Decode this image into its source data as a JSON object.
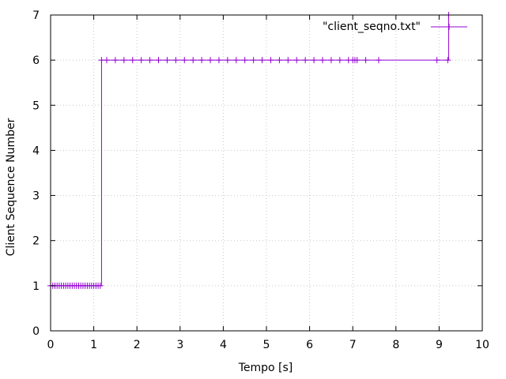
{
  "chart_data": {
    "type": "line",
    "title": "",
    "xlabel": "Tempo [s]",
    "ylabel": "Client Sequence Number",
    "xlim": [
      0,
      10
    ],
    "ylim": [
      0,
      7
    ],
    "x_ticks": [
      "0",
      "1",
      "2",
      "3",
      "4",
      "5",
      "6",
      "7",
      "8",
      "9",
      "10"
    ],
    "y_ticks": [
      "0",
      "1",
      "2",
      "3",
      "4",
      "5",
      "6",
      "7"
    ],
    "grid": true,
    "legend_position": "top-right",
    "series": [
      {
        "name": "\"client_seqno.txt\"",
        "color": "#9400d3",
        "style": "linespoints",
        "marker": "plus",
        "points": [
          {
            "x": 0.0,
            "y": 1
          },
          {
            "x": 0.05,
            "y": 1
          },
          {
            "x": 0.1,
            "y": 1
          },
          {
            "x": 0.15,
            "y": 1
          },
          {
            "x": 0.2,
            "y": 1
          },
          {
            "x": 0.25,
            "y": 1
          },
          {
            "x": 0.3,
            "y": 1
          },
          {
            "x": 0.35,
            "y": 1
          },
          {
            "x": 0.4,
            "y": 1
          },
          {
            "x": 0.45,
            "y": 1
          },
          {
            "x": 0.5,
            "y": 1
          },
          {
            "x": 0.55,
            "y": 1
          },
          {
            "x": 0.6,
            "y": 1
          },
          {
            "x": 0.65,
            "y": 1
          },
          {
            "x": 0.7,
            "y": 1
          },
          {
            "x": 0.75,
            "y": 1
          },
          {
            "x": 0.8,
            "y": 1
          },
          {
            "x": 0.85,
            "y": 1
          },
          {
            "x": 0.9,
            "y": 1
          },
          {
            "x": 0.95,
            "y": 1
          },
          {
            "x": 1.0,
            "y": 1
          },
          {
            "x": 1.05,
            "y": 1
          },
          {
            "x": 1.1,
            "y": 1
          },
          {
            "x": 1.15,
            "y": 1
          },
          {
            "x": 1.18,
            "y": 6
          },
          {
            "x": 1.3,
            "y": 6
          },
          {
            "x": 1.5,
            "y": 6
          },
          {
            "x": 1.7,
            "y": 6
          },
          {
            "x": 1.9,
            "y": 6
          },
          {
            "x": 2.1,
            "y": 6
          },
          {
            "x": 2.3,
            "y": 6
          },
          {
            "x": 2.5,
            "y": 6
          },
          {
            "x": 2.7,
            "y": 6
          },
          {
            "x": 2.9,
            "y": 6
          },
          {
            "x": 3.1,
            "y": 6
          },
          {
            "x": 3.3,
            "y": 6
          },
          {
            "x": 3.5,
            "y": 6
          },
          {
            "x": 3.7,
            "y": 6
          },
          {
            "x": 3.9,
            "y": 6
          },
          {
            "x": 4.1,
            "y": 6
          },
          {
            "x": 4.3,
            "y": 6
          },
          {
            "x": 4.5,
            "y": 6
          },
          {
            "x": 4.7,
            "y": 6
          },
          {
            "x": 4.9,
            "y": 6
          },
          {
            "x": 5.1,
            "y": 6
          },
          {
            "x": 5.3,
            "y": 6
          },
          {
            "x": 5.5,
            "y": 6
          },
          {
            "x": 5.7,
            "y": 6
          },
          {
            "x": 5.9,
            "y": 6
          },
          {
            "x": 6.1,
            "y": 6
          },
          {
            "x": 6.3,
            "y": 6
          },
          {
            "x": 6.5,
            "y": 6
          },
          {
            "x": 6.7,
            "y": 6
          },
          {
            "x": 6.9,
            "y": 6
          },
          {
            "x": 7.0,
            "y": 6
          },
          {
            "x": 7.05,
            "y": 6
          },
          {
            "x": 7.1,
            "y": 6
          },
          {
            "x": 7.3,
            "y": 6
          },
          {
            "x": 7.6,
            "y": 6
          },
          {
            "x": 8.95,
            "y": 6
          },
          {
            "x": 9.2,
            "y": 6
          },
          {
            "x": 9.22,
            "y": 7
          }
        ]
      }
    ]
  }
}
